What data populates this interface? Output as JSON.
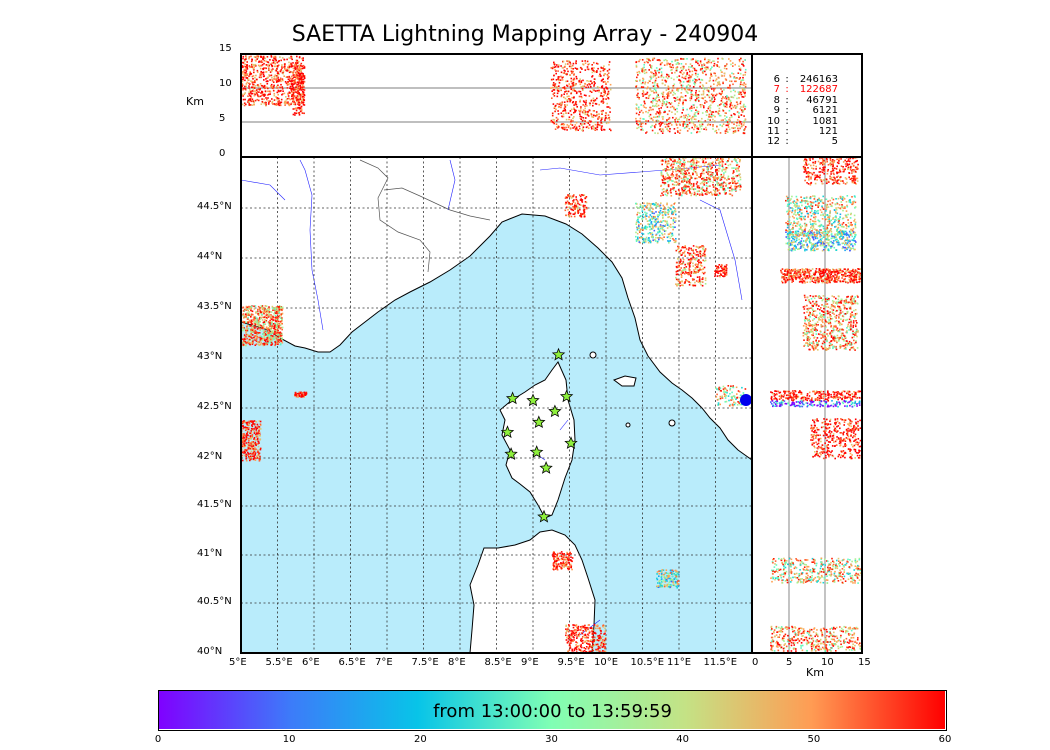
{
  "title": "SAETTA Lightning Mapping Array - 240904",
  "colorbar": {
    "label": "from 13:00:00 to 13:59:59",
    "ticks": [
      "0",
      "10",
      "20",
      "30",
      "40",
      "50",
      "60"
    ],
    "colormap": "rainbow",
    "range": [
      0,
      60
    ]
  },
  "altitude_panel": {
    "ylabel": "Km",
    "yticks": [
      "0",
      "5",
      "10",
      "15"
    ]
  },
  "side_panel": {
    "xlabel": "Km",
    "xticks": [
      "0",
      "5",
      "10",
      "15"
    ]
  },
  "map": {
    "lon_ticks": [
      "5°E",
      "5.5°E",
      "6°E",
      "6.5°E",
      "7°E",
      "7.5°E",
      "8°E",
      "8.5°E",
      "9°E",
      "9.5°E",
      "10°E",
      "10.5°E",
      "11°E",
      "11.5°E"
    ],
    "lat_ticks": [
      "40°N",
      "40.5°N",
      "41°N",
      "41.5°N",
      "42°N",
      "42.5°N",
      "43°N",
      "43.5°N",
      "44°N",
      "44.5°N"
    ],
    "lon_range": [
      5,
      12
    ],
    "lat_range": [
      40,
      44.95
    ],
    "sea_color": "#b9ecfb",
    "land_color": "#ffffff",
    "station_marker_color": "#8ef03c",
    "stations": [
      {
        "lon": 9.35,
        "lat": 43.0
      },
      {
        "lon": 8.72,
        "lat": 42.56
      },
      {
        "lon": 9.0,
        "lat": 42.54
      },
      {
        "lon": 9.46,
        "lat": 42.58
      },
      {
        "lon": 9.3,
        "lat": 42.43
      },
      {
        "lon": 9.08,
        "lat": 42.32
      },
      {
        "lon": 8.65,
        "lat": 42.22
      },
      {
        "lon": 9.52,
        "lat": 42.11
      },
      {
        "lon": 8.7,
        "lat": 42.0
      },
      {
        "lon": 9.05,
        "lat": 42.02
      },
      {
        "lon": 9.18,
        "lat": 41.86
      },
      {
        "lon": 9.15,
        "lat": 41.37
      }
    ]
  },
  "legend": [
    {
      "level": "6",
      "count": "246163",
      "color": "#000000"
    },
    {
      "level": "7",
      "count": "122687",
      "color": "#ff0000"
    },
    {
      "level": "8",
      "count": "46791",
      "color": "#000000"
    },
    {
      "level": "9",
      "count": "6121",
      "color": "#000000"
    },
    {
      "level": "10",
      "count": "1081",
      "color": "#000000"
    },
    {
      "level": "11",
      "count": "121",
      "color": "#000000"
    },
    {
      "level": "12",
      "count": "5",
      "color": "#000000"
    }
  ]
}
